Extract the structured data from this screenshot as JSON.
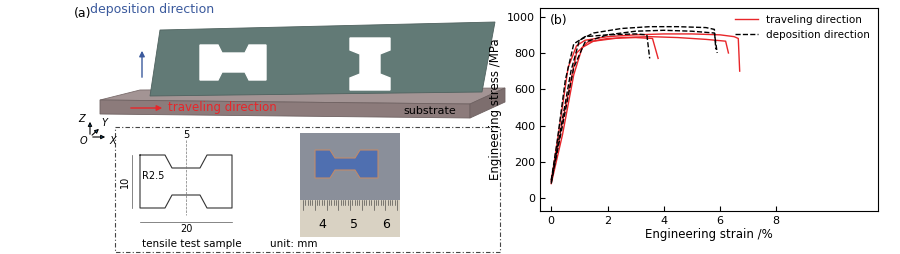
{
  "panel_a": {
    "label": "(a)",
    "deposition_direction": "deposition direction",
    "traveling_direction": "traveling direction",
    "substrate": "substrate",
    "axes": {
      "z": "Z",
      "y": "Y",
      "origin": "O",
      "x": "X"
    },
    "sample": {
      "top_width": "5",
      "height": "10",
      "radius": "R2.5",
      "length": "20",
      "caption": "tensile test sample",
      "unit": "unit: mm"
    },
    "ruler": [
      "4",
      "5",
      "6"
    ]
  },
  "chart_data": {
    "type": "line",
    "panel_label": "(b)",
    "x_label": "Engineering strain /%",
    "y_label": "Engineering stress /MPa",
    "xlim": [
      -0.4,
      11.6
    ],
    "ylim": [
      -70,
      1050
    ],
    "xticks": [
      0,
      2,
      4,
      6,
      8
    ],
    "yticks": [
      0,
      200,
      400,
      600,
      800,
      1000
    ],
    "legend": "upper right",
    "series": [
      {
        "name": "traveling direction",
        "color": "#e8262a",
        "line_style": "solid",
        "curves": [
          {
            "x": [
              0,
              0.3,
              0.6,
              0.9,
              1.2,
              2,
              3,
              4,
              5,
              6,
              6.5,
              6.65,
              6.7
            ],
            "values": [
              90,
              400,
              720,
              840,
              870,
              890,
              900,
              905,
              905,
              900,
              890,
              880,
              700
            ]
          },
          {
            "x": [
              0,
              0.4,
              0.8,
              1.1,
              1.5,
              2.5,
              3.5,
              4.5,
              5.5,
              6.2,
              6.3
            ],
            "values": [
              80,
              350,
              680,
              830,
              865,
              885,
              890,
              885,
              875,
              865,
              800
            ]
          },
          {
            "x": [
              0,
              0.5,
              0.9,
              1.3,
              2,
              3,
              3.6,
              3.8
            ],
            "values": [
              100,
              500,
              800,
              860,
              880,
              885,
              880,
              770
            ]
          }
        ]
      },
      {
        "name": "deposition direction",
        "color": "#000000",
        "line_style": "dashed",
        "curves": [
          {
            "x": [
              0,
              0.2,
              0.5,
              0.8,
              1.2,
              2,
              3,
              3.4,
              3.5
            ],
            "values": [
              100,
              300,
              650,
              850,
              890,
              900,
              905,
              900,
              770
            ]
          },
          {
            "x": [
              0,
              0.3,
              0.7,
              1,
              1.5,
              2.5,
              3.5,
              4.5,
              5.5,
              5.8,
              5.85
            ],
            "values": [
              80,
              350,
              700,
              870,
              910,
              935,
              945,
              945,
              940,
              930,
              820
            ]
          },
          {
            "x": [
              0,
              0.4,
              0.8,
              1.2,
              2,
              3,
              4,
              5,
              5.8,
              5.9
            ],
            "values": [
              90,
              400,
              720,
              860,
              900,
              920,
              925,
              920,
              910,
              800
            ]
          }
        ]
      }
    ]
  }
}
